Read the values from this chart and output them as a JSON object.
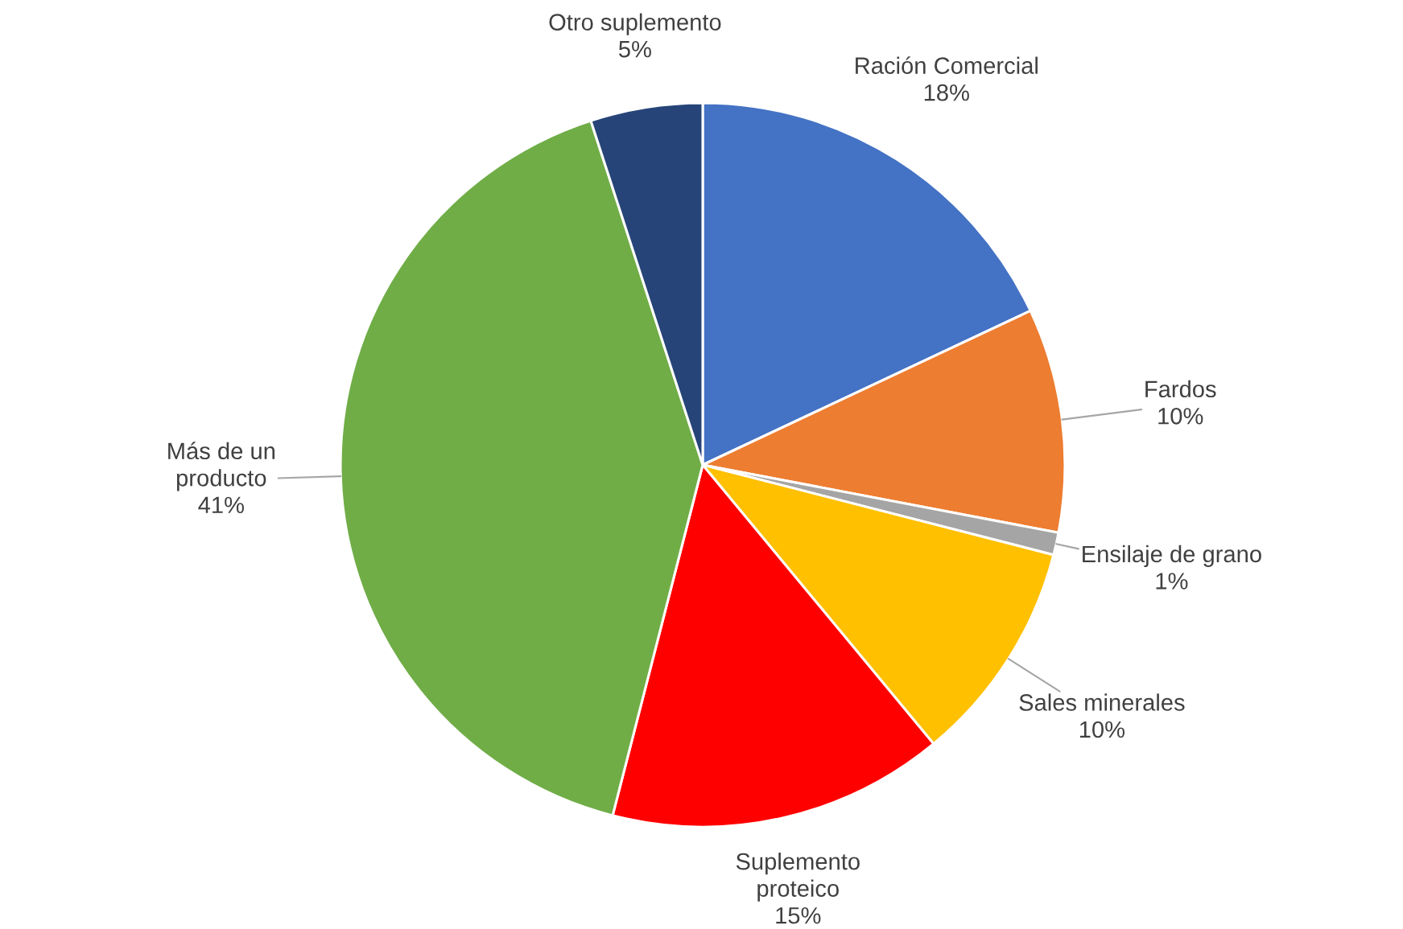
{
  "chart_data": {
    "type": "pie",
    "categories": [
      "Ración Comercial",
      "Fardos",
      "Ensilaje de grano",
      "Sales minerales",
      "Suplemento\nproteico",
      "Más de un\nproducto",
      "Otro suplemento"
    ],
    "values": [
      18,
      10,
      1,
      10,
      15,
      41,
      5
    ],
    "value_labels": [
      "18%",
      "10%",
      "1%",
      "10%",
      "15%",
      "41%",
      "5%"
    ],
    "colors": [
      "#4472c4",
      "#ed7d31",
      "#a5a5a5",
      "#ffc000",
      "#ff0000",
      "#70ad47",
      "#264478"
    ],
    "legend": false
  }
}
